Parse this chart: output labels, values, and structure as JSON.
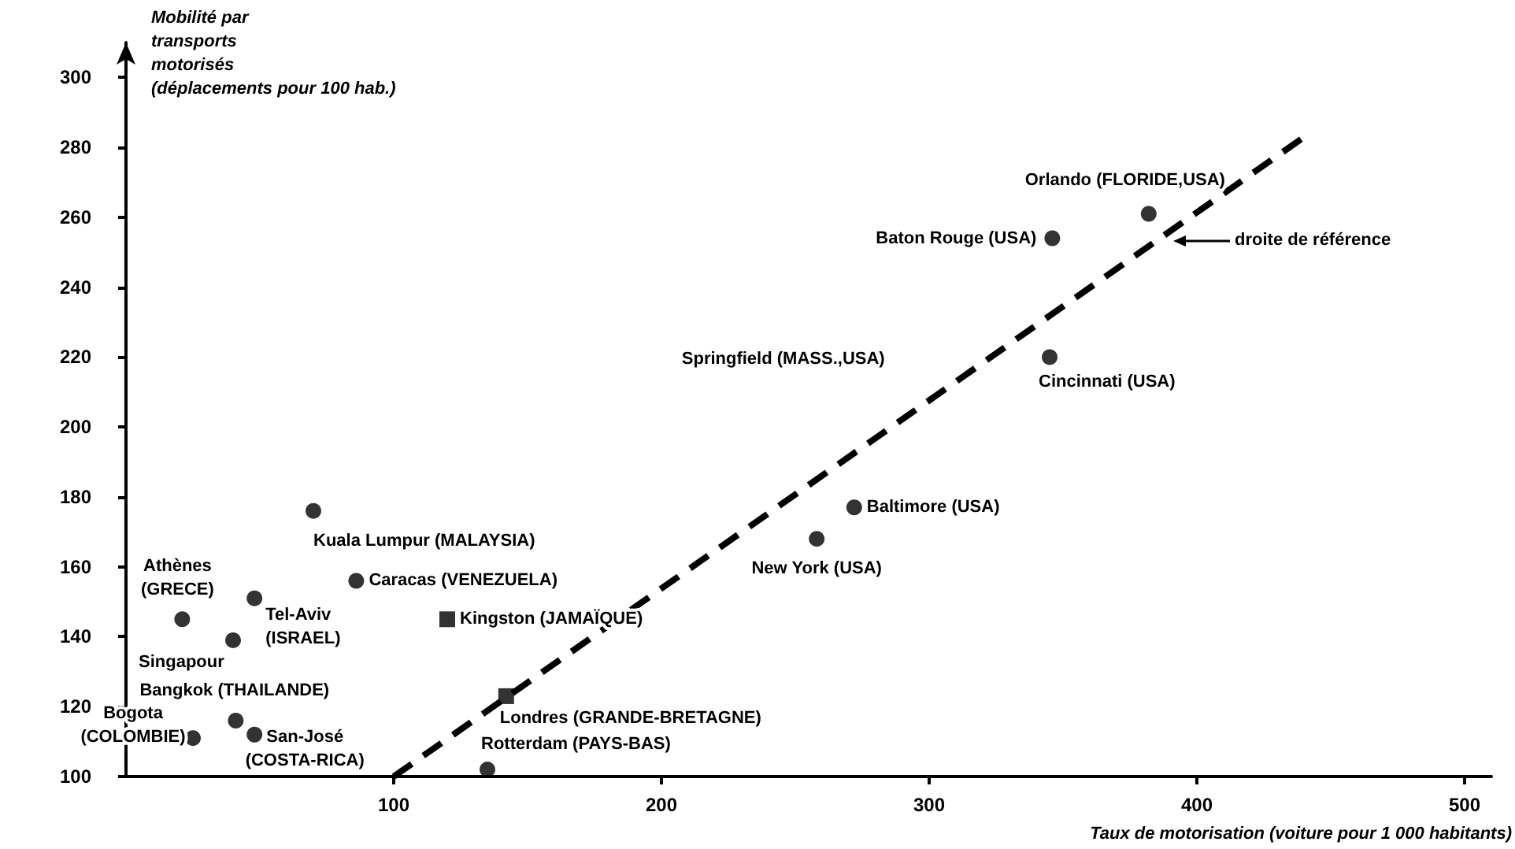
{
  "chart_data": {
    "type": "scatter",
    "xlabel": "Taux de motorisation (voiture pour 1 000 habitants)",
    "ylabel": "Mobilité par\ntransports\nmotorisés\n(déplacements pour 100 hab.)",
    "xlim": [
      0,
      510
    ],
    "xticks": [
      100,
      200,
      300,
      400,
      500
    ],
    "ylim": [
      100,
      310
    ],
    "yticks": [
      100,
      120,
      140,
      160,
      180,
      200,
      220,
      240,
      260,
      280,
      300
    ],
    "grid": false,
    "series": [
      {
        "marker": "circle",
        "color": "#000000",
        "x": [
          21,
          48,
          40,
          41,
          25,
          48,
          70,
          86,
          135,
          258,
          272,
          345,
          346,
          382
        ],
        "values": [
          145,
          151,
          139,
          116,
          111,
          112,
          176,
          156,
          102,
          168,
          177,
          220,
          254,
          261
        ]
      },
      {
        "marker": "square",
        "color": "#000000",
        "x": [
          120,
          142
        ],
        "values": [
          145,
          123
        ]
      },
      {
        "type": "line",
        "marker": "none",
        "line_style": "dashed",
        "color": "#000000",
        "x": [
          100,
          442
        ],
        "values": [
          100,
          284
        ]
      }
    ],
    "annotations": [
      {
        "text": "Athènes\n(GRECE)",
        "x": 21,
        "y": 145
      },
      {
        "text": "Tel-Aviv\n(ISRAEL)",
        "x": 48,
        "y": 151
      },
      {
        "text": "Singapour",
        "x": 40,
        "y": 139
      },
      {
        "text": "Bangkok (THAILANDE)",
        "x": 41,
        "y": 116
      },
      {
        "text": "Bogota\n(COLOMBIE)",
        "x": 25,
        "y": 111
      },
      {
        "text": "San-José\n(COSTA-RICA)",
        "x": 48,
        "y": 112
      },
      {
        "text": "Kuala Lumpur (MALAYSIA)",
        "x": 70,
        "y": 176
      },
      {
        "text": "Caracas (VENEZUELA)",
        "x": 86,
        "y": 156
      },
      {
        "text": "Kingston (JAMAÏQUE)",
        "x": 120,
        "y": 145
      },
      {
        "text": "Londres (GRANDE-BRETAGNE)",
        "x": 142,
        "y": 123
      },
      {
        "text": "Rotterdam (PAYS-BAS)",
        "x": 135,
        "y": 102
      },
      {
        "text": "New York (USA)",
        "x": 258,
        "y": 168
      },
      {
        "text": "Baltimore (USA)",
        "x": 272,
        "y": 177
      },
      {
        "text": "Cincinnati (USA)",
        "x": 345,
        "y": 220
      },
      "Springfield (MASS.,USA)",
      {
        "text": "Baton Rouge (USA)",
        "x": 346,
        "y": 254
      },
      {
        "text": "Orlando (FLORIDE,USA)",
        "x": 382,
        "y": 261
      },
      "droite de référence"
    ]
  }
}
